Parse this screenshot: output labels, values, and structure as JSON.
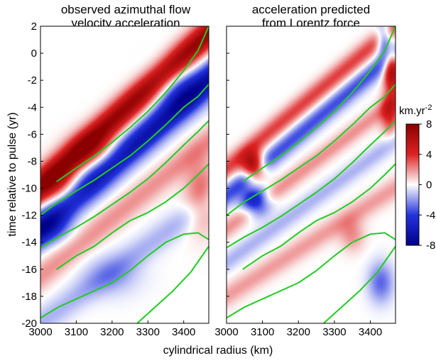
{
  "chart_data": {
    "type": "heatmap",
    "xlabel": "cylindrical radius (km)",
    "ylabel": "time relative to pulse (yr)",
    "xlim": [
      3000,
      3470
    ],
    "ylim": [
      -20,
      2
    ],
    "xticks": [
      "3000",
      "3100",
      "3200",
      "3300",
      "3400"
    ],
    "yticks": [
      "2",
      "0",
      "-2",
      "-4",
      "-6",
      "-8",
      "-10",
      "-12",
      "-14",
      "-16",
      "-18",
      "-20"
    ],
    "colorbar": {
      "label_base": "km.yr",
      "label_exp": "-2",
      "range": [
        -8,
        8
      ],
      "ticks": [
        "8",
        "4",
        "0",
        "-4",
        "-8"
      ],
      "colors": [
        "#00008b",
        "#2233dd",
        "#ffffff",
        "#dd2222",
        "#8b0000"
      ]
    },
    "panels": [
      {
        "title_line1": "observed azimuthal flow",
        "title_line2": "velocity acceleration",
        "features": [
          {
            "kind": "ridge",
            "x0": 3000,
            "t0": -9.8,
            "x1": 3470,
            "t1": 1.5,
            "amp": 7.5,
            "width": 1.3
          },
          {
            "kind": "ridge",
            "x0": 3000,
            "t0": -13.0,
            "x1": 3470,
            "t1": -2.0,
            "amp": -6.5,
            "width": 1.4
          },
          {
            "kind": "ridge",
            "x0": 3000,
            "t0": -16.5,
            "x1": 3470,
            "t1": -6.5,
            "amp": 2.0,
            "width": 1.2
          },
          {
            "kind": "ridge",
            "x0": 3000,
            "t0": -20.0,
            "x1": 3470,
            "t1": -11.0,
            "amp": -1.5,
            "width": 1.2
          },
          {
            "kind": "blob",
            "x": 3060,
            "t": -10.0,
            "amp": 3.0,
            "sx": 60,
            "st": 1.6
          },
          {
            "kind": "blob",
            "x": 3150,
            "t": -7.3,
            "amp": 2.5,
            "sx": 70,
            "st": 1.4
          },
          {
            "kind": "blob",
            "x": 3380,
            "t": -2.5,
            "amp": -2.5,
            "sx": 70,
            "st": 1.8
          },
          {
            "kind": "blob",
            "x": 3030,
            "t": -13.0,
            "amp": -2.0,
            "sx": 60,
            "st": 1.2
          },
          {
            "kind": "blob",
            "x": 3450,
            "t": -10.5,
            "amp": 3.0,
            "sx": 45,
            "st": 2.5
          },
          {
            "kind": "blob",
            "x": 3200,
            "t": -16.5,
            "amp": -1.5,
            "sx": 80,
            "st": 1.5
          }
        ]
      },
      {
        "title_line1": "acceleration predicted",
        "title_line2": "from Lorentz force",
        "features": [
          {
            "kind": "ridge",
            "x0": 3000,
            "t0": -8.5,
            "x1": 3470,
            "t1": 2.0,
            "amp": 3.5,
            "width": 0.9
          },
          {
            "kind": "ridge",
            "x0": 3000,
            "t0": -10.5,
            "x1": 3470,
            "t1": 0.0,
            "amp": -3.5,
            "width": 0.9
          },
          {
            "kind": "ridge",
            "x0": 3000,
            "t0": -13.0,
            "x1": 3470,
            "t1": -3.5,
            "amp": 2.0,
            "width": 0.8
          },
          {
            "kind": "ridge",
            "x0": 3000,
            "t0": -15.5,
            "x1": 3470,
            "t1": -6.5,
            "amp": -1.5,
            "width": 0.8
          },
          {
            "kind": "ridge",
            "x0": 3000,
            "t0": -18.0,
            "x1": 3470,
            "t1": -10.0,
            "amp": 1.8,
            "width": 0.9
          },
          {
            "kind": "blob",
            "x": 3075,
            "t": -8.4,
            "amp": 8.0,
            "sx": 30,
            "st": 1.0
          },
          {
            "kind": "blob",
            "x": 3080,
            "t": -11.0,
            "amp": -6.5,
            "sx": 38,
            "st": 1.0
          },
          {
            "kind": "blob",
            "x": 3460,
            "t": -1.2,
            "amp": 7.0,
            "sx": 22,
            "st": 1.6
          },
          {
            "kind": "blob",
            "x": 3440,
            "t": 1.0,
            "amp": -5.0,
            "sx": 22,
            "st": 1.2
          },
          {
            "kind": "blob",
            "x": 3455,
            "t": -4.5,
            "amp": 4.0,
            "sx": 25,
            "st": 1.5
          },
          {
            "kind": "blob",
            "x": 3430,
            "t": -17.0,
            "amp": -3.0,
            "sx": 35,
            "st": 1.5
          },
          {
            "kind": "blob",
            "x": 3350,
            "t": -13.5,
            "amp": 2.0,
            "sx": 35,
            "st": 1.2
          }
        ]
      }
    ],
    "characteristic_curves": {
      "color": "#22cc22",
      "curves": [
        {
          "start_x": 3045,
          "t_at_3470": 2.0
        },
        {
          "start_x": 3000,
          "t_at_3470": -2.3
        },
        {
          "start_x": 3000,
          "t_at_3470": -5.0
        },
        {
          "start_x": 3045,
          "t_at_3470": -8.2
        },
        {
          "start_x": 3000,
          "t_at_3470": -13.8
        }
      ],
      "points": [
        [
          [
            3045,
            -9.5
          ],
          [
            3100,
            -8.5
          ],
          [
            3150,
            -7.6
          ],
          [
            3200,
            -6.6
          ],
          [
            3250,
            -5.5
          ],
          [
            3300,
            -4.3
          ],
          [
            3350,
            -2.9
          ],
          [
            3400,
            -1.3
          ],
          [
            3440,
            0.2
          ],
          [
            3470,
            2.0
          ]
        ],
        [
          [
            3000,
            -12.0
          ],
          [
            3050,
            -11.0
          ],
          [
            3100,
            -10.2
          ],
          [
            3150,
            -9.4
          ],
          [
            3200,
            -8.5
          ],
          [
            3250,
            -7.6
          ],
          [
            3300,
            -6.5
          ],
          [
            3350,
            -5.3
          ],
          [
            3400,
            -4.0
          ],
          [
            3440,
            -3.2
          ],
          [
            3470,
            -2.3
          ]
        ],
        [
          [
            3000,
            -14.4
          ],
          [
            3050,
            -13.6
          ],
          [
            3100,
            -12.9
          ],
          [
            3150,
            -12.1
          ],
          [
            3200,
            -11.2
          ],
          [
            3250,
            -10.3
          ],
          [
            3300,
            -9.3
          ],
          [
            3350,
            -8.1
          ],
          [
            3400,
            -6.8
          ],
          [
            3440,
            -5.8
          ],
          [
            3470,
            -5.0
          ]
        ],
        [
          [
            3045,
            -16.0
          ],
          [
            3100,
            -15.0
          ],
          [
            3150,
            -14.3
          ],
          [
            3200,
            -13.3
          ],
          [
            3250,
            -12.4
          ],
          [
            3300,
            -11.8
          ],
          [
            3350,
            -11.0
          ],
          [
            3400,
            -10.0
          ],
          [
            3440,
            -9.0
          ],
          [
            3470,
            -8.2
          ]
        ],
        [
          [
            3000,
            -19.6
          ],
          [
            3050,
            -18.8
          ],
          [
            3100,
            -18.2
          ],
          [
            3150,
            -17.6
          ],
          [
            3200,
            -17.0
          ],
          [
            3250,
            -16.1
          ],
          [
            3300,
            -15.0
          ],
          [
            3350,
            -14.0
          ],
          [
            3400,
            -13.4
          ],
          [
            3440,
            -13.3
          ],
          [
            3470,
            -13.8
          ]
        ]
      ],
      "lower_segment": [
        [
          3270,
          -20.0
        ],
        [
          3320,
          -18.8
        ],
        [
          3370,
          -17.6
        ],
        [
          3420,
          -16.2
        ],
        [
          3470,
          -14.3
        ]
      ]
    }
  }
}
